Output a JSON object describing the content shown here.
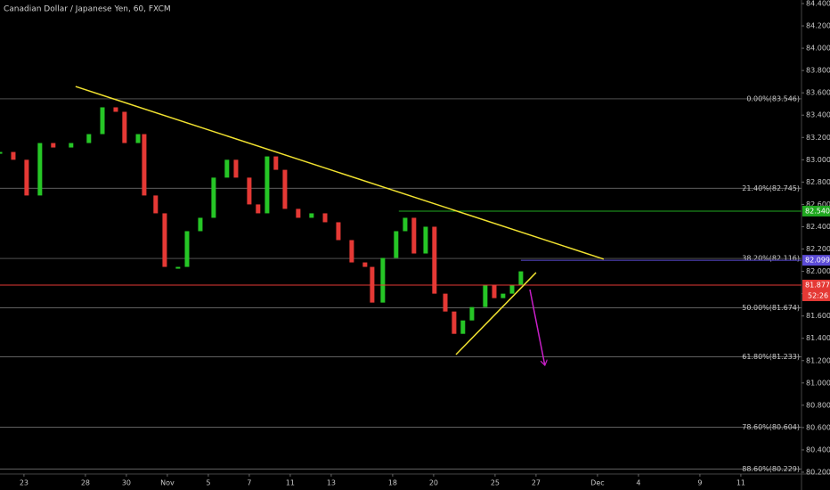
{
  "chart_data": {
    "type": "candlestick",
    "title": "Canadian Dollar / Japanese Yen, 60, FXCM",
    "x": [
      -1.17,
      -0.52,
      0.13,
      0.78,
      1.43,
      2.3,
      3.17,
      3.83,
      4.48,
      4.91,
      5.57,
      5.87,
      6.43,
      6.87,
      7.52,
      7.96,
      8.61,
      9.26,
      9.91,
      10.35,
      11.0,
      11.43,
      11.87,
      12.3,
      12.74,
      13.39,
      14.04,
      14.7,
      15.35,
      16.0,
      16.65,
      17.0,
      17.52,
      18.17,
      18.61,
      19.04,
      19.61,
      20.04,
      20.57,
      21.0,
      21.43,
      21.87,
      22.52,
      22.96,
      23.39,
      23.83,
      24.26
    ],
    "values": [
      83.07,
      83.0,
      82.68,
      83.15,
      83.11,
      83.15,
      83.23,
      83.47,
      83.43,
      83.15,
      83.23,
      82.68,
      82.52,
      82.04,
      82.04,
      82.36,
      82.48,
      82.84,
      83.0,
      82.84,
      82.6,
      82.52,
      83.03,
      82.91,
      82.56,
      82.48,
      82.52,
      82.44,
      82.28,
      82.08,
      82.04,
      81.72,
      82.12,
      82.36,
      82.48,
      82.16,
      82.4,
      81.8,
      81.64,
      81.44,
      81.56,
      81.68,
      81.88,
      81.76,
      81.8,
      81.88,
      82.0
    ],
    "up_color": "#26c626",
    "down_color": "#e53935",
    "xlim": [
      -1.17,
      37.96
    ],
    "xticks": [
      {
        "value": 0,
        "label": "23"
      },
      {
        "value": 3,
        "label": "28"
      },
      {
        "value": 5,
        "label": "30"
      },
      {
        "value": 7,
        "label": "Nov"
      },
      {
        "value": 9,
        "label": "5"
      },
      {
        "value": 11,
        "label": "7"
      },
      {
        "value": 13,
        "label": "11"
      },
      {
        "value": 15,
        "label": "13"
      },
      {
        "value": 18,
        "label": "18"
      },
      {
        "value": 20,
        "label": "20"
      },
      {
        "value": 23,
        "label": "25"
      },
      {
        "value": 25,
        "label": "27"
      },
      {
        "value": 28,
        "label": "Dec"
      },
      {
        "value": 30,
        "label": "4"
      },
      {
        "value": 33,
        "label": "9"
      },
      {
        "value": 35,
        "label": "11"
      }
    ],
    "ylim": [
      80.184,
      84.432
    ],
    "yticks": [
      {
        "value": 80.2,
        "label": "80.200"
      },
      {
        "value": 80.4,
        "label": "80.400"
      },
      {
        "value": 80.6,
        "label": "80.600"
      },
      {
        "value": 80.8,
        "label": "80.800"
      },
      {
        "value": 81,
        "label": "81.000"
      },
      {
        "value": 81.2,
        "label": "81.200"
      },
      {
        "value": 81.4,
        "label": "81.400"
      },
      {
        "value": 81.6,
        "label": "81.600"
      },
      {
        "value": 81.8,
        "label": "81.800"
      },
      {
        "value": 82,
        "label": "82.000"
      },
      {
        "value": 82.2,
        "label": "82.200"
      },
      {
        "value": 82.4,
        "label": "82.400"
      },
      {
        "value": 82.6,
        "label": "82.600"
      },
      {
        "value": 82.8,
        "label": "82.800"
      },
      {
        "value": 83,
        "label": "83.000"
      },
      {
        "value": 83.2,
        "label": "83.200"
      },
      {
        "value": 83.4,
        "label": "83.400"
      },
      {
        "value": 83.6,
        "label": "83.600"
      },
      {
        "value": 83.8,
        "label": "83.800"
      },
      {
        "value": 84,
        "label": "84.000"
      },
      {
        "value": 84.2,
        "label": "84.200"
      },
      {
        "value": 84.4,
        "label": "84.400"
      }
    ],
    "fib_levels": [
      {
        "value": 83.546,
        "label": "0.00%(83.546)"
      },
      {
        "value": 82.745,
        "label": "21.40%(82.745)"
      },
      {
        "value": 82.116,
        "label": "38.20%(82.116)"
      },
      {
        "value": 81.674,
        "label": "50.00%(81.674)"
      },
      {
        "value": 81.233,
        "label": "61.80%(81.233)"
      },
      {
        "value": 80.604,
        "label": "78.60%(80.604)"
      },
      {
        "value": 80.229,
        "label": "88.60%(80.229)"
      }
    ],
    "fib_color": "#808080",
    "price_lines": [
      {
        "value": 82.54,
        "label": "82.540",
        "color": "#1fa81f",
        "start": 18.3
      },
      {
        "value": 82.099,
        "label": "82.099",
        "color": "#5b4bd6",
        "start": 24.26
      },
      {
        "value": 81.877,
        "label": "81.877",
        "color": "#e53935",
        "start": -1.17,
        "countdown": "52:26"
      }
    ],
    "trendlines": [
      {
        "x": [
          2.52,
          28.3
        ],
        "y": [
          83.657,
          82.11
        ],
        "color": "#f0e130"
      },
      {
        "x": [
          21.09,
          25.0
        ],
        "y": [
          81.254,
          81.989
        ],
        "color": "#f0e130"
      },
      {
        "x": [
          24.7,
          25.43
        ],
        "y": [
          81.837,
          81.158
        ],
        "color": "#c81fc8",
        "arrow": true
      }
    ]
  }
}
